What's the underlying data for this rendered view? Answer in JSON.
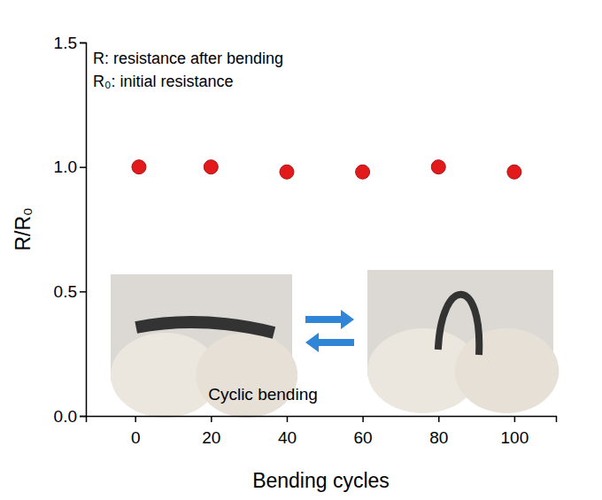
{
  "chart_data": {
    "type": "scatter",
    "x": [
      1,
      20,
      40,
      60,
      80,
      100
    ],
    "values": [
      1.0,
      1.0,
      0.98,
      0.98,
      1.0,
      0.98
    ],
    "color": "#e31a1c",
    "marker": "circle",
    "xlim": [
      -13,
      111
    ],
    "xticks": [
      0,
      20,
      40,
      60,
      80,
      100
    ],
    "ylim": [
      0,
      1.5
    ],
    "yticks": [
      {
        "value": 0,
        "label": "0.0"
      },
      0.5,
      {
        "value": 1,
        "label": "1.0"
      },
      1.5
    ],
    "x_label": "Bending cycles",
    "y_label": "R/R₀",
    "annotations": [
      "R: resistance after bending",
      "R₀: initial resistance",
      "Cyclic bending"
    ],
    "grid": false
  }
}
